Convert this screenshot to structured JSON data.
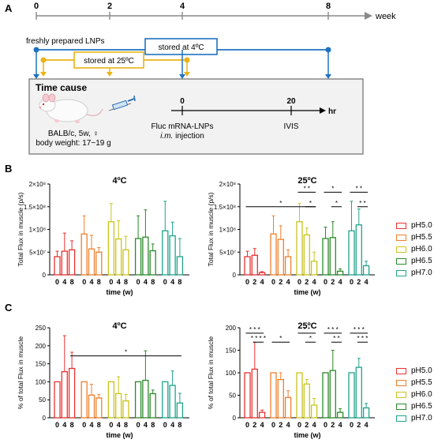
{
  "panels": {
    "a": "A",
    "b": "B",
    "c": "C"
  },
  "timeline": {
    "ticks": [
      "0",
      "2",
      "4",
      "8"
    ],
    "unit": "week",
    "fresh_label": "freshly prepared LNPs",
    "store4_label": "stored at 4ºC",
    "store25_label": "stored at 25ºC"
  },
  "timecause": {
    "title": "Time cause",
    "mouse_lines": [
      "BALB/c, 5w, ♀",
      "body weight: 17~19 g"
    ],
    "ticks": [
      "0",
      "20"
    ],
    "unit": "hr",
    "inj_line1": "Fluc mRNA-LNPs",
    "inj_line2a": "i.m.",
    "inj_line2b": " injection",
    "ivis": "IVIS"
  },
  "colors": {
    "pH5.0": "#e8312f",
    "pH5.5": "#f07f2a",
    "pH6.0": "#c9c41a",
    "pH6.5": "#2a8a2a",
    "pH7.0": "#1fa38a",
    "blue": "#1f72c0",
    "gold": "#eab316"
  },
  "legend": [
    "pH5.0",
    "pH5.5",
    "pH6.0",
    "pH6.5",
    "pH7.0"
  ],
  "chart_data": [
    {
      "id": "B-4C",
      "type": "bar",
      "title": "4ºC",
      "ylabel": "Total Flux in muscle (p/s)",
      "xlabel": "time (w)",
      "ylim": [
        0,
        200000000
      ],
      "yticks": [
        "0",
        "5×10⁷",
        "1×10⁸",
        "1.5×10⁸",
        "2×10⁸"
      ],
      "categories": [
        "0",
        "4",
        "8"
      ],
      "series": [
        {
          "name": "pH5.0",
          "values": [
            40000000,
            52000000,
            55000000
          ],
          "err": [
            12000000,
            40000000,
            20000000
          ]
        },
        {
          "name": "pH5.5",
          "values": [
            90000000,
            57000000,
            50000000
          ],
          "err": [
            40000000,
            30000000,
            10000000
          ]
        },
        {
          "name": "pH6.0",
          "values": [
            117000000,
            79000000,
            55000000
          ],
          "err": [
            40000000,
            40000000,
            30000000
          ]
        },
        {
          "name": "pH6.5",
          "values": [
            80000000,
            83000000,
            53000000
          ],
          "err": [
            50000000,
            60000000,
            15000000
          ]
        },
        {
          "name": "pH7.0",
          "values": [
            97000000,
            86000000,
            40000000
          ],
          "err": [
            65000000,
            30000000,
            40000000
          ]
        }
      ]
    },
    {
      "id": "B-25C",
      "type": "bar",
      "title": "25ºC",
      "ylabel": "Total Flux in muscle (p/s)",
      "xlabel": "time (w)",
      "ylim": [
        0,
        200000000
      ],
      "yticks": [
        "0",
        "5×10⁷",
        "1×10⁸",
        "1.5×10⁸",
        "2×10⁸"
      ],
      "categories": [
        "0",
        "2",
        "4"
      ],
      "series": [
        {
          "name": "pH5.0",
          "values": [
            40000000,
            43000000,
            5000000
          ],
          "err": [
            12000000,
            15000000,
            2000000
          ]
        },
        {
          "name": "pH5.5",
          "values": [
            90000000,
            78000000,
            40000000
          ],
          "err": [
            40000000,
            30000000,
            15000000
          ]
        },
        {
          "name": "pH6.0",
          "values": [
            117000000,
            88000000,
            30000000
          ],
          "err": [
            40000000,
            15000000,
            20000000
          ]
        },
        {
          "name": "pH6.5",
          "values": [
            80000000,
            82000000,
            8000000
          ],
          "err": [
            25000000,
            35000000,
            5000000
          ]
        },
        {
          "name": "pH7.0",
          "values": [
            97000000,
            110000000,
            20000000
          ],
          "err": [
            65000000,
            35000000,
            10000000
          ]
        }
      ],
      "sig": [
        {
          "label": "*",
          "from": [
            0,
            0
          ],
          "to": [
            2,
            2
          ],
          "y": 150000000.0
        },
        {
          "label": "* *",
          "from": [
            2,
            0
          ],
          "to": [
            2,
            2
          ],
          "y": 182000000.0
        },
        {
          "label": "*",
          "from": [
            2,
            1
          ],
          "to": [
            2,
            2
          ],
          "y": 150000000.0
        },
        {
          "label": "*",
          "from": [
            3,
            0
          ],
          "to": [
            3,
            2
          ],
          "y": 182000000.0
        },
        {
          "label": "*",
          "from": [
            3,
            1
          ],
          "to": [
            3,
            2
          ],
          "y": 150000000.0
        },
        {
          "label": "* *",
          "from": [
            4,
            0
          ],
          "to": [
            4,
            2
          ],
          "y": 182000000.0
        },
        {
          "label": "* *",
          "from": [
            4,
            1
          ],
          "to": [
            4,
            2
          ],
          "y": 150000000.0
        }
      ]
    },
    {
      "id": "C-4C",
      "type": "bar",
      "title": "4ºC",
      "ylabel": "% of total Flux in muscle",
      "xlabel": "time (w)",
      "ylim": [
        0,
        250
      ],
      "yticks": [
        "0",
        "50",
        "100",
        "150",
        "200",
        "250"
      ],
      "categories": [
        "0",
        "4",
        "8"
      ],
      "series": [
        {
          "name": "pH5.0",
          "values": [
            100,
            128,
            137
          ],
          "err": [
            0,
            100,
            45
          ]
        },
        {
          "name": "pH5.5",
          "values": [
            100,
            63,
            55
          ],
          "err": [
            0,
            30,
            10
          ]
        },
        {
          "name": "pH6.0",
          "values": [
            100,
            67,
            47
          ],
          "err": [
            0,
            47,
            18
          ]
        },
        {
          "name": "pH6.5",
          "values": [
            100,
            104,
            67
          ],
          "err": [
            0,
            82,
            10
          ]
        },
        {
          "name": "pH7.0",
          "values": [
            100,
            90,
            41
          ],
          "err": [
            0,
            40,
            27
          ]
        }
      ],
      "sig": [
        {
          "label": "*",
          "from": [
            0,
            2
          ],
          "to": [
            4,
            2
          ],
          "y": 172
        }
      ]
    },
    {
      "id": "C-25C",
      "type": "bar",
      "title": "25ºC",
      "ylabel": "% of total Flux in muscle",
      "xlabel": "time (w)",
      "ylim": [
        0,
        200
      ],
      "yticks": [
        "0",
        "50",
        "100",
        "150",
        "200"
      ],
      "categories": [
        "0",
        "2",
        "4"
      ],
      "series": [
        {
          "name": "pH5.0",
          "values": [
            100,
            108,
            12
          ],
          "err": [
            0,
            60,
            5
          ]
        },
        {
          "name": "pH5.5",
          "values": [
            100,
            85,
            45
          ],
          "err": [
            0,
            15,
            15
          ]
        },
        {
          "name": "pH6.0",
          "values": [
            100,
            75,
            28
          ],
          "err": [
            0,
            10,
            15
          ]
        },
        {
          "name": "pH6.5",
          "values": [
            100,
            105,
            12
          ],
          "err": [
            0,
            45,
            8
          ]
        },
        {
          "name": "pH7.0",
          "values": [
            100,
            112,
            22
          ],
          "err": [
            0,
            20,
            10
          ]
        }
      ],
      "sig": [
        {
          "label": "* * *",
          "from": [
            0,
            0
          ],
          "to": [
            0,
            2
          ],
          "y": 188
        },
        {
          "label": "* * * *",
          "from": [
            0,
            1
          ],
          "to": [
            0,
            2
          ],
          "y": 168
        },
        {
          "label": "*",
          "from": [
            1,
            0
          ],
          "to": [
            1,
            2
          ],
          "y": 168
        },
        {
          "label": "* *",
          "from": [
            2,
            0
          ],
          "to": [
            2,
            2
          ],
          "y": 188
        },
        {
          "label": "*",
          "from": [
            2,
            1
          ],
          "to": [
            2,
            2
          ],
          "y": 168
        },
        {
          "label": "* * *",
          "from": [
            3,
            0
          ],
          "to": [
            3,
            2
          ],
          "y": 188
        },
        {
          "label": "* *",
          "from": [
            3,
            1
          ],
          "to": [
            3,
            2
          ],
          "y": 168
        },
        {
          "label": "* * *",
          "from": [
            4,
            0
          ],
          "to": [
            4,
            2
          ],
          "y": 188
        },
        {
          "label": "* * *",
          "from": [
            4,
            1
          ],
          "to": [
            4,
            2
          ],
          "y": 168
        }
      ]
    }
  ]
}
